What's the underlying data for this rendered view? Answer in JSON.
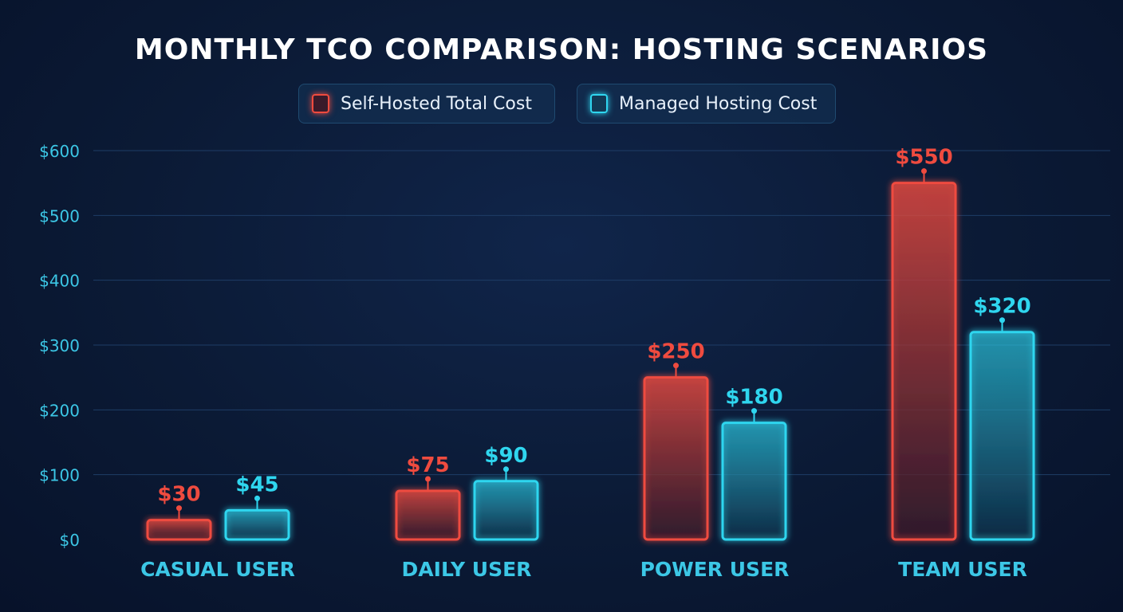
{
  "chart_data": {
    "type": "bar",
    "title": "MONTHLY TCO COMPARISON: HOSTING SCENARIOS",
    "categories": [
      "CASUAL USER",
      "DAILY USER",
      "POWER USER",
      "TEAM USER"
    ],
    "series": [
      {
        "name": "Self-Hosted Total Cost",
        "values": [
          30,
          75,
          250,
          550
        ],
        "color": "#ef4b3f"
      },
      {
        "name": "Managed Hosting Cost",
        "values": [
          45,
          90,
          180,
          320
        ],
        "color": "#2fd6ef"
      }
    ],
    "value_labels": [
      [
        "$30",
        "$75",
        "$250",
        "$550"
      ],
      [
        "$45",
        "$90",
        "$180",
        "$320"
      ]
    ],
    "yticks": [
      0,
      100,
      200,
      300,
      400,
      500,
      600
    ],
    "ytick_labels": [
      "$0",
      "$100",
      "$200",
      "$300",
      "$400",
      "$500",
      "$600"
    ],
    "ylim": [
      0,
      600
    ],
    "xlabel": "",
    "ylabel": "",
    "grid": true,
    "legend": "top-center"
  }
}
